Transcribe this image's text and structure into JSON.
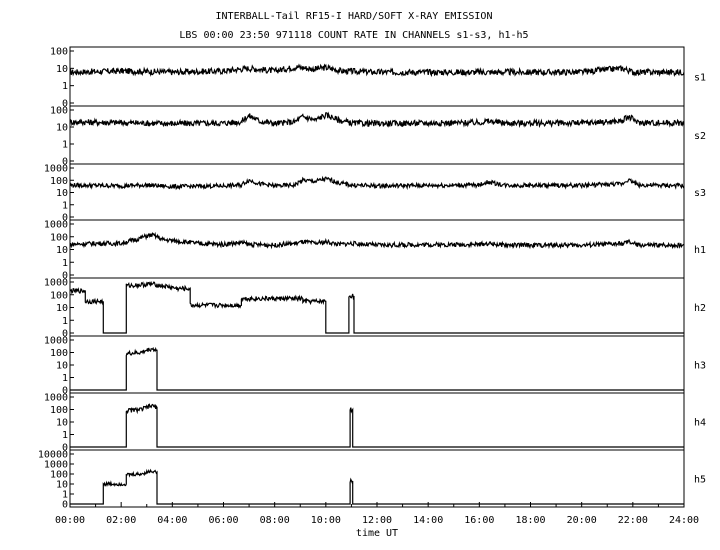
{
  "chart_data": {
    "type": "line",
    "title": "INTERBALL-Tail RF15-I HARD/SOFT X-RAY EMISSION",
    "subtitle": "LBS 00:00 23:50 971118  COUNT RATE IN CHANNELS s1-s3, h1-h5",
    "xlabel": "time UT",
    "x_ticks": [
      "00:00",
      "02:00",
      "04:00",
      "06:00",
      "08:00",
      "10:00",
      "12:00",
      "14:00",
      "16:00",
      "18:00",
      "20:00",
      "22:00",
      "24:00"
    ],
    "xlim_hours": [
      0,
      24
    ],
    "yscale": "log",
    "grid": false,
    "panels": [
      {
        "channel": "s1",
        "ylim": [
          0,
          100
        ],
        "y_ticks": [
          "100",
          "10",
          "1",
          "0"
        ],
        "series": [
          [
            0,
            6
          ],
          [
            2,
            7
          ],
          [
            4,
            6
          ],
          [
            6,
            7
          ],
          [
            7,
            10
          ],
          [
            8,
            7
          ],
          [
            8.9,
            12
          ],
          [
            9.5,
            9
          ],
          [
            10,
            11
          ],
          [
            10.6,
            7
          ],
          [
            12,
            6
          ],
          [
            14,
            6
          ],
          [
            16,
            6
          ],
          [
            18,
            6
          ],
          [
            20,
            6
          ],
          [
            21.6,
            10
          ],
          [
            22,
            6
          ],
          [
            24,
            6
          ]
        ]
      },
      {
        "channel": "s2",
        "ylim": [
          0,
          100
        ],
        "y_ticks": [
          "100",
          "10",
          "1",
          "0"
        ],
        "series": [
          [
            0,
            20
          ],
          [
            2,
            18
          ],
          [
            4,
            16
          ],
          [
            6,
            17
          ],
          [
            6.7,
            20
          ],
          [
            7,
            45
          ],
          [
            7.4,
            22
          ],
          [
            8,
            16
          ],
          [
            8.8,
            20
          ],
          [
            9.1,
            40
          ],
          [
            9.6,
            25
          ],
          [
            10,
            50
          ],
          [
            10.5,
            25
          ],
          [
            11,
            17
          ],
          [
            12,
            16
          ],
          [
            14,
            17
          ],
          [
            16,
            18
          ],
          [
            16.3,
            22
          ],
          [
            17,
            17
          ],
          [
            18,
            17
          ],
          [
            20,
            17
          ],
          [
            21.6,
            22
          ],
          [
            21.8,
            40
          ],
          [
            22.2,
            18
          ],
          [
            24,
            17
          ]
        ]
      },
      {
        "channel": "s3",
        "ylim": [
          0,
          1000
        ],
        "y_ticks": [
          "1000",
          "100",
          "10",
          "1",
          "0"
        ],
        "series": [
          [
            0,
            40
          ],
          [
            2,
            35
          ],
          [
            3,
            40
          ],
          [
            4,
            30
          ],
          [
            6,
            35
          ],
          [
            6.7,
            40
          ],
          [
            7,
            100
          ],
          [
            7.4,
            50
          ],
          [
            8,
            35
          ],
          [
            8.8,
            40
          ],
          [
            9.1,
            100
          ],
          [
            9.6,
            80
          ],
          [
            10,
            130
          ],
          [
            10.5,
            60
          ],
          [
            11,
            40
          ],
          [
            12,
            35
          ],
          [
            14,
            38
          ],
          [
            16,
            40
          ],
          [
            16.3,
            70
          ],
          [
            17,
            40
          ],
          [
            18,
            38
          ],
          [
            20,
            38
          ],
          [
            21.6,
            50
          ],
          [
            21.8,
            110
          ],
          [
            22.2,
            40
          ],
          [
            24,
            35
          ]
        ]
      },
      {
        "channel": "h1",
        "ylim": [
          0,
          1000
        ],
        "y_ticks": [
          "1000",
          "100",
          "10",
          "1",
          "0"
        ],
        "series": [
          [
            0,
            25
          ],
          [
            1,
            30
          ],
          [
            2,
            30
          ],
          [
            2.6,
            60
          ],
          [
            3.2,
            140
          ],
          [
            3.6,
            60
          ],
          [
            4.2,
            45
          ],
          [
            5,
            30
          ],
          [
            6,
            25
          ],
          [
            6.7,
            35
          ],
          [
            7,
            25
          ],
          [
            8,
            22
          ],
          [
            8.8,
            30
          ],
          [
            9.1,
            40
          ],
          [
            9.6,
            30
          ],
          [
            10,
            40
          ],
          [
            10.5,
            25
          ],
          [
            11,
            30
          ],
          [
            12,
            22
          ],
          [
            14,
            24
          ],
          [
            16,
            25
          ],
          [
            16.3,
            30
          ],
          [
            17,
            22
          ],
          [
            18,
            22
          ],
          [
            20,
            22
          ],
          [
            21.6,
            28
          ],
          [
            21.8,
            40
          ],
          [
            22.2,
            22
          ],
          [
            24,
            22
          ]
        ]
      },
      {
        "channel": "h2",
        "ylim": [
          0,
          1000
        ],
        "y_ticks": [
          "1000",
          "100",
          "10",
          "1",
          "0"
        ],
        "series": [
          [
            0,
            200
          ],
          [
            0.6,
            200
          ],
          [
            0.6,
            30
          ],
          [
            1.3,
            30
          ],
          [
            1.3,
            0
          ],
          [
            2.2,
            0
          ],
          [
            2.2,
            500
          ],
          [
            2.8,
            600
          ],
          [
            3.2,
            700
          ],
          [
            3.6,
            500
          ],
          [
            4.2,
            300
          ],
          [
            4.7,
            300
          ],
          [
            4.7,
            15
          ],
          [
            6.7,
            15
          ],
          [
            6.7,
            50
          ],
          [
            9.1,
            50
          ],
          [
            9.1,
            30
          ],
          [
            10,
            30
          ],
          [
            10,
            0
          ],
          [
            10.9,
            0
          ],
          [
            10.9,
            80
          ],
          [
            11.1,
            80
          ],
          [
            11.1,
            0
          ],
          [
            24,
            0
          ]
        ]
      },
      {
        "channel": "h3",
        "ylim": [
          0,
          1000
        ],
        "y_ticks": [
          "1000",
          "100",
          "10",
          "1",
          "0"
        ],
        "series": [
          [
            0,
            0
          ],
          [
            2.2,
            0
          ],
          [
            2.2,
            80
          ],
          [
            2.8,
            100
          ],
          [
            3.2,
            200
          ],
          [
            3.4,
            150
          ],
          [
            3.4,
            0
          ],
          [
            24,
            0
          ]
        ]
      },
      {
        "channel": "h4",
        "ylim": [
          0,
          1000
        ],
        "y_ticks": [
          "1000",
          "100",
          "10",
          "1",
          "0"
        ],
        "series": [
          [
            0,
            0
          ],
          [
            2.2,
            0
          ],
          [
            2.2,
            80
          ],
          [
            2.8,
            100
          ],
          [
            3.2,
            200
          ],
          [
            3.4,
            150
          ],
          [
            3.4,
            0
          ],
          [
            10.95,
            0
          ],
          [
            10.95,
            100
          ],
          [
            11.05,
            100
          ],
          [
            11.05,
            0
          ],
          [
            24,
            0
          ]
        ]
      },
      {
        "channel": "h5",
        "ylim": [
          0,
          10000
        ],
        "y_ticks": [
          "10000",
          "1000",
          "100",
          "10",
          "1",
          "0"
        ],
        "series": [
          [
            0,
            0
          ],
          [
            1.3,
            0
          ],
          [
            1.3,
            10
          ],
          [
            2.2,
            10
          ],
          [
            2.2,
            80
          ],
          [
            2.8,
            100
          ],
          [
            3.2,
            200
          ],
          [
            3.4,
            150
          ],
          [
            3.4,
            0
          ],
          [
            10.95,
            0
          ],
          [
            10.95,
            20
          ],
          [
            11.05,
            20
          ],
          [
            11.05,
            0
          ],
          [
            24,
            0
          ]
        ]
      }
    ]
  }
}
